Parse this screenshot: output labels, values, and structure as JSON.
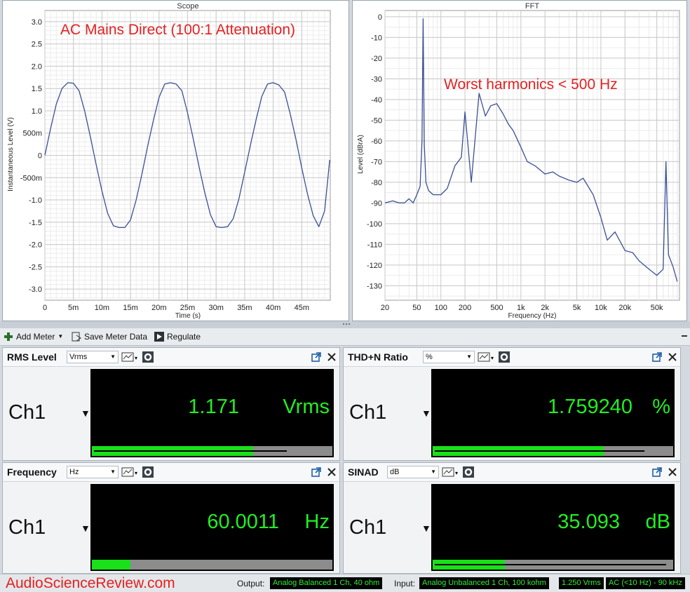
{
  "scope": {
    "title": "Scope",
    "annotation": "AC Mains Direct (100:1 Attenuation)",
    "ylabel": "Instantaneous Level (V)",
    "xlabel": "Time (s)",
    "yticks": [
      "3.0",
      "2.5",
      "2.0",
      "1.5",
      "1.0",
      "500m",
      "0",
      "-500m",
      "-1.0",
      "-1.5",
      "-2.0",
      "-2.5",
      "-3.0"
    ],
    "xticks": [
      "0",
      "5m",
      "10m",
      "15m",
      "20m",
      "25m",
      "30m",
      "35m",
      "40m",
      "45m"
    ]
  },
  "fft": {
    "title": "FFT",
    "annotation": "Worst harmonics < 500 Hz",
    "ylabel": "Level (dBrA)",
    "xlabel": "Frequency (Hz)",
    "yticks": [
      "0",
      "-10",
      "-20",
      "-30",
      "-40",
      "-50",
      "-60",
      "-70",
      "-80",
      "-90",
      "-100",
      "-110",
      "-120",
      "-130"
    ],
    "xticks": [
      "20",
      "50",
      "100",
      "200",
      "500",
      "1k",
      "2k",
      "5k",
      "10k",
      "20k",
      "50k"
    ]
  },
  "chart_data": [
    {
      "type": "line",
      "title": "Scope",
      "xlabel": "Time (s)",
      "ylabel": "Instantaneous Level (V)",
      "xlim": [
        0,
        0.05
      ],
      "ylim": [
        -3.25,
        3.25
      ],
      "grid": true,
      "series": [
        {
          "x": [
            0,
            0.001,
            0.002,
            0.003,
            0.004,
            0.005,
            0.006,
            0.007,
            0.008,
            0.009,
            0.01,
            0.011,
            0.012,
            0.013,
            0.014,
            0.015,
            0.016,
            0.017,
            0.018,
            0.019,
            0.02,
            0.021,
            0.022,
            0.023,
            0.024,
            0.025,
            0.026,
            0.027,
            0.028,
            0.029,
            0.03,
            0.031,
            0.032,
            0.033,
            0.034,
            0.035,
            0.036,
            0.037,
            0.038,
            0.039,
            0.04,
            0.041,
            0.042,
            0.043,
            0.044,
            0.045,
            0.046,
            0.047,
            0.048,
            0.049,
            0.0499
          ],
          "values": [
            0.0,
            0.6,
            1.15,
            1.5,
            1.63,
            1.62,
            1.45,
            0.98,
            0.4,
            -0.22,
            -0.8,
            -1.3,
            -1.58,
            -1.62,
            -1.62,
            -1.45,
            -1.0,
            -0.42,
            0.2,
            0.78,
            1.3,
            1.6,
            1.63,
            1.6,
            1.45,
            0.95,
            0.37,
            -0.25,
            -0.83,
            -1.33,
            -1.6,
            -1.62,
            -1.6,
            -1.42,
            -0.97,
            -0.38,
            0.22,
            0.8,
            1.32,
            1.6,
            1.63,
            1.58,
            1.42,
            0.92,
            0.35,
            -0.28,
            -0.86,
            -1.35,
            -1.6,
            -1.25,
            -0.1
          ]
        }
      ]
    },
    {
      "type": "line",
      "title": "FFT",
      "xlabel": "Frequency (Hz)",
      "ylabel": "Level (dBrA)",
      "xscale": "log",
      "xlim": [
        20,
        96000
      ],
      "ylim": [
        -137,
        3
      ],
      "grid": true,
      "series": [
        {
          "x": [
            20,
            25,
            30,
            35,
            40,
            45,
            50,
            55,
            58,
            60,
            62,
            65,
            70,
            80,
            100,
            120,
            150,
            180,
            200,
            240,
            300,
            360,
            420,
            500,
            600,
            700,
            800,
            1000,
            1200,
            1500,
            2000,
            2500,
            3000,
            4000,
            5000,
            6000,
            8000,
            10000,
            12000,
            15000,
            20000,
            25000,
            30000,
            40000,
            50000,
            60000,
            65000,
            70000,
            80000,
            90000
          ],
          "values": [
            -90,
            -89,
            -90,
            -90,
            -88,
            -90,
            -86,
            -82,
            -60,
            -1,
            -62,
            -80,
            -84,
            -86,
            -86,
            -83,
            -72,
            -68,
            -46,
            -80,
            -37,
            -48,
            -43,
            -42,
            -47,
            -52,
            -55,
            -63,
            -70,
            -72,
            -76,
            -75,
            -77,
            -79,
            -80,
            -78,
            -86,
            -97,
            -108,
            -104,
            -113,
            -114,
            -118,
            -122,
            -125,
            -122,
            -70,
            -115,
            -121,
            -128
          ]
        }
      ]
    }
  ],
  "toolbar": {
    "add_meter": "Add Meter",
    "save_meter_data": "Save Meter Data",
    "regulate": "Regulate"
  },
  "meters": [
    {
      "title": "RMS Level",
      "unit": "Vrms",
      "channel": "Ch1",
      "value": "1.171",
      "value_unit": "Vrms",
      "bar_fraction": 0.67,
      "peak_fraction": 0.81
    },
    {
      "title": "THD+N Ratio",
      "unit": "%",
      "channel": "Ch1",
      "value": "1.759240",
      "value_unit": "%",
      "bar_fraction": 0.71,
      "peak_fraction": 0.88
    },
    {
      "title": "Frequency",
      "unit": "Hz",
      "channel": "Ch1",
      "value": "60.0011",
      "value_unit": "Hz",
      "bar_fraction": 0.16,
      "peak_fraction": 0.0
    },
    {
      "title": "SINAD",
      "unit": "dB",
      "channel": "Ch1",
      "value": "35.093",
      "value_unit": "dB",
      "bar_fraction": 0.3,
      "peak_fraction": 0.97
    }
  ],
  "status": {
    "brand": "AudioScienceReview.com",
    "output_label": "Output:",
    "output_value": "Analog Balanced 1 Ch, 40 ohm",
    "input_label": "Input:",
    "input_value": "Analog Unbalanced 1 Ch, 100 kohm",
    "input_level": "1.250 Vrms",
    "input_bandwidth": "AC (<10 Hz) - 90 kHz"
  },
  "colors": {
    "trace": "#3a4f96",
    "meter_text": "#22ee22",
    "annotation": "#e52020"
  }
}
